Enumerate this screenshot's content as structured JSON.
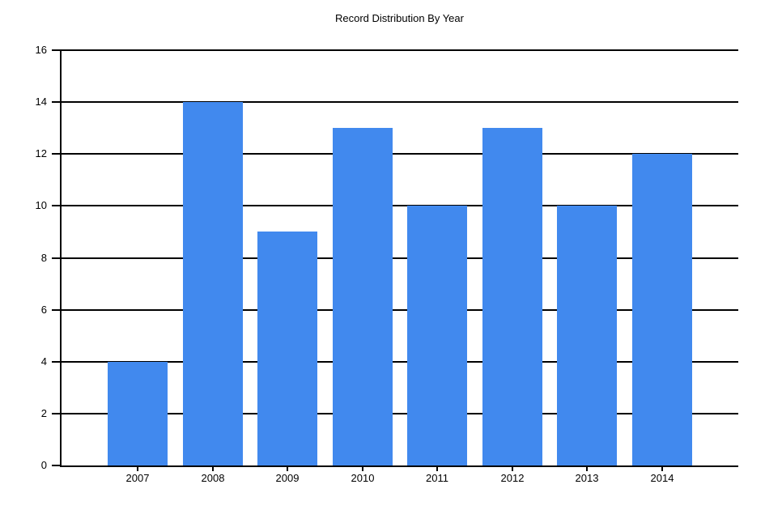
{
  "title": "Record Distribution By Year",
  "chart_data": {
    "type": "bar",
    "title": "Record Distribution By Year",
    "categories": [
      "2007",
      "2008",
      "2009",
      "2010",
      "2011",
      "2012",
      "2013",
      "2014"
    ],
    "values": [
      4,
      14,
      9,
      13,
      10,
      13,
      10,
      12
    ],
    "xlabel": "",
    "ylabel": "",
    "ylim": [
      0,
      16
    ],
    "ytick_step": 2,
    "ytick_labels": [
      "0",
      "2",
      "4",
      "6",
      "8",
      "10",
      "12",
      "14",
      "16"
    ],
    "bar_color": "#4189EE",
    "axis_color": "#000000",
    "text_color": "#000000",
    "background": "#FFFFFF",
    "grid": true,
    "legend_position": "none"
  }
}
